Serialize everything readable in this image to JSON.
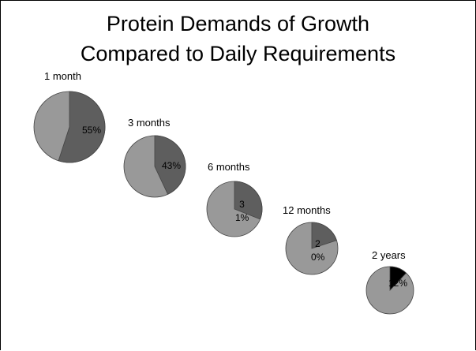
{
  "chart_data": {
    "type": "pie",
    "title": [
      "Protein Demands of Growth",
      "Compared to Daily Requirements"
    ],
    "pies": [
      {
        "label": "1 month",
        "value": 55,
        "value_label": "55%",
        "color": "#5e5e5e"
      },
      {
        "label": "3 months",
        "value": 43,
        "value_label": "43%",
        "color": "#5e5e5e"
      },
      {
        "label": "6 months",
        "value": 31,
        "value_label": "31%",
        "color": "#5e5e5e"
      },
      {
        "label": "12 months",
        "value": 20,
        "value_label": "20%",
        "color": "#5e5e5e"
      },
      {
        "label": "2 years",
        "value": 12,
        "value_label": "12%",
        "color": "#000000"
      }
    ]
  }
}
